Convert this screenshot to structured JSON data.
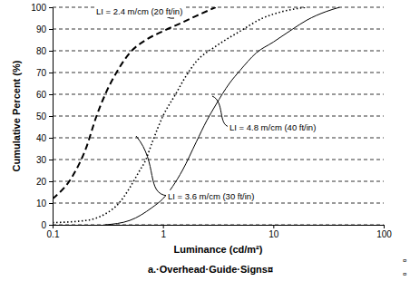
{
  "chart_data": {
    "type": "line",
    "title": "a.·Overhead·Guide·Signs¤",
    "x_label": "Luminance (cd/m²)",
    "y_label": "Cumulative Percent (%)",
    "annotations": [
      "¤",
      "¤"
    ],
    "log": "x",
    "grid": true,
    "xlim": [
      0.1,
      100
    ],
    "xticks": [
      0.1,
      1,
      10,
      100
    ],
    "ylim": [
      0,
      100
    ],
    "yticks": [
      0,
      10,
      20,
      30,
      40,
      50,
      60,
      70,
      80,
      90,
      100
    ],
    "series": [
      {
        "name": "LI = 2.4 m/cm (20 ft/in)",
        "color": "#000000",
        "line_style": "dashed",
        "x": [
          0.1,
          0.15,
          0.2,
          0.25,
          0.3,
          0.4,
          0.5,
          0.7,
          1,
          1.5,
          2,
          3
        ],
        "values": [
          12,
          22,
          35,
          50,
          60,
          72,
          79,
          85,
          89,
          93,
          96,
          100
        ]
      },
      {
        "name": "LI = 3.6 m/cm (30 ft/in)",
        "color": "#000000",
        "line_style": "dotted",
        "x": [
          0.1,
          0.2,
          0.3,
          0.4,
          0.5,
          0.6,
          0.7,
          0.8,
          1,
          1.3,
          1.6,
          2,
          3,
          5,
          8,
          12,
          20
        ],
        "values": [
          1,
          2,
          5,
          10,
          17,
          24,
          30,
          38,
          50,
          60,
          68,
          75,
          82,
          89,
          95,
          98,
          100
        ]
      },
      {
        "name": "LI = 4.8 m/cm (40 ft/in)",
        "color": "#000000",
        "line_style": "solid",
        "x": [
          0.3,
          0.5,
          0.8,
          1,
          1.5,
          2,
          2.5,
          3,
          4,
          5,
          7,
          10,
          15,
          20,
          30,
          40
        ],
        "values": [
          0,
          2,
          8,
          12,
          25,
          38,
          48,
          55,
          65,
          71,
          79,
          84,
          90,
          94,
          98,
          100
        ]
      }
    ]
  }
}
